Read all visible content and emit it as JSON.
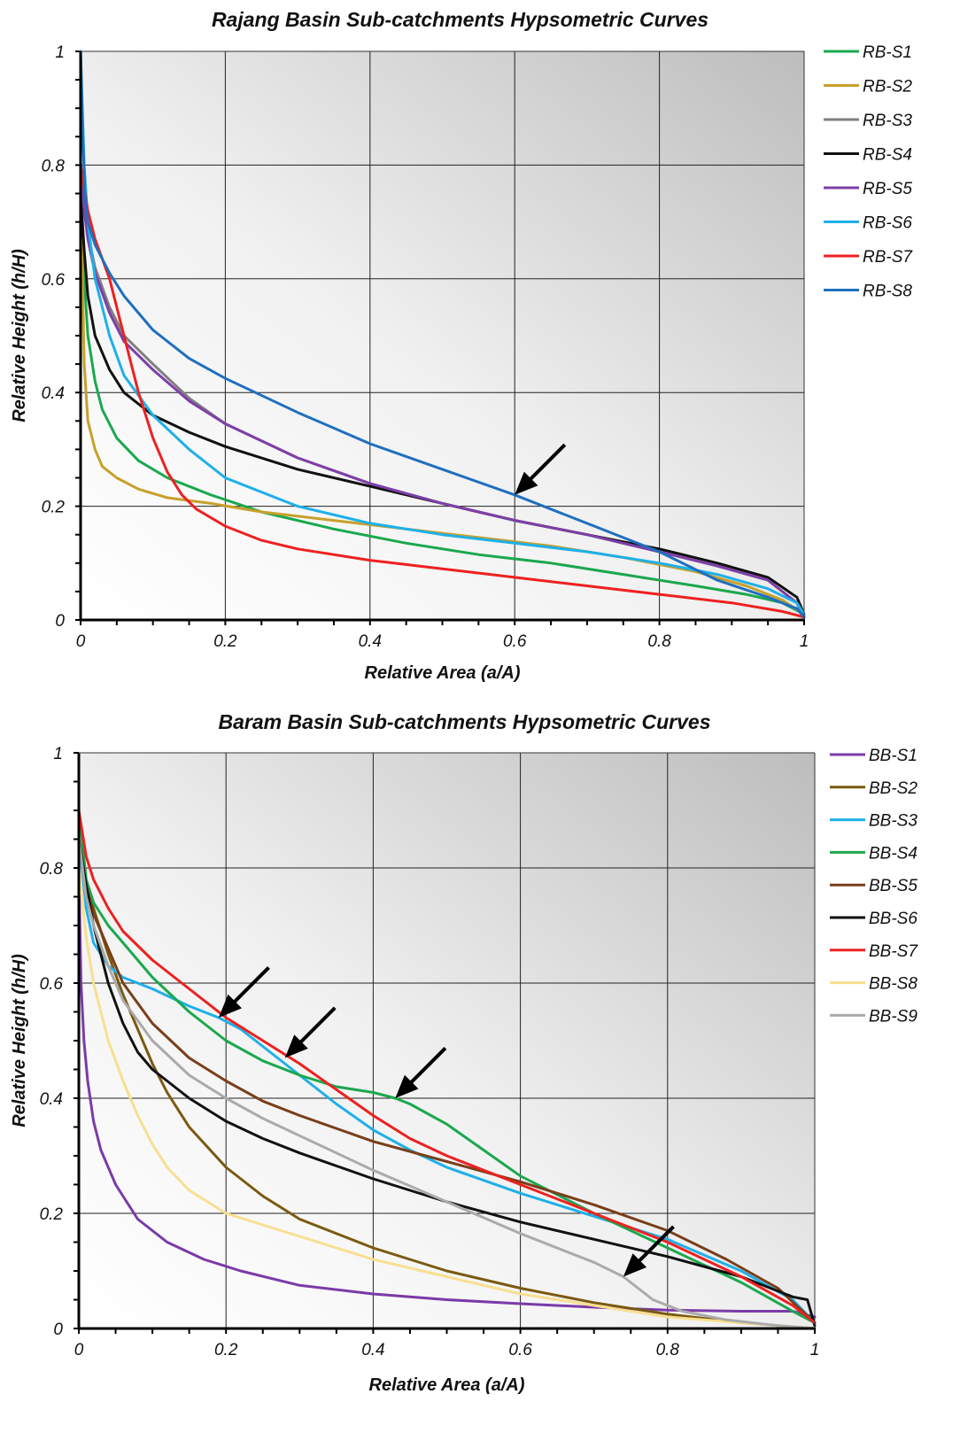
{
  "chart_data": [
    {
      "type": "line",
      "title": "Rajang Basin Sub-catchments Hypsometric Curves",
      "xlabel": "Relative Area (a/A)",
      "ylabel": "Relative Height (h/H)",
      "xlim": [
        0,
        1
      ],
      "ylim": [
        0,
        1
      ],
      "xticks": [
        "0",
        "0.2",
        "0.4",
        "0.6",
        "0.8",
        "1"
      ],
      "yticks": [
        "0",
        "0.2",
        "0.4",
        "0.6",
        "0.8",
        "1"
      ],
      "grid": true,
      "legend_position": "right",
      "annotations": [
        {
          "type": "arrow",
          "x": 0.6,
          "y": 0.22
        }
      ],
      "series": [
        {
          "name": "RB-S1",
          "color": "#1aa84e",
          "x": [
            0,
            0.005,
            0.01,
            0.02,
            0.03,
            0.05,
            0.08,
            0.12,
            0.18,
            0.25,
            0.35,
            0.45,
            0.55,
            0.65,
            0.75,
            0.85,
            0.92,
            0.97,
            1.0
          ],
          "y": [
            0.8,
            0.6,
            0.5,
            0.42,
            0.37,
            0.32,
            0.28,
            0.25,
            0.22,
            0.19,
            0.16,
            0.135,
            0.115,
            0.1,
            0.08,
            0.06,
            0.045,
            0.03,
            0.01
          ]
        },
        {
          "name": "RB-S2",
          "color": "#c8a02a",
          "x": [
            0,
            0.005,
            0.01,
            0.02,
            0.03,
            0.05,
            0.08,
            0.12,
            0.18,
            0.25,
            0.35,
            0.45,
            0.55,
            0.65,
            0.75,
            0.85,
            0.92,
            0.97,
            1.0
          ],
          "y": [
            0.75,
            0.45,
            0.35,
            0.3,
            0.27,
            0.25,
            0.23,
            0.215,
            0.205,
            0.19,
            0.175,
            0.16,
            0.145,
            0.13,
            0.11,
            0.085,
            0.06,
            0.035,
            0.01
          ]
        },
        {
          "name": "RB-S3",
          "color": "#808080",
          "x": [
            0,
            0.005,
            0.01,
            0.02,
            0.04,
            0.06,
            0.1,
            0.15,
            0.2,
            0.3,
            0.4,
            0.5,
            0.6,
            0.7,
            0.8,
            0.88,
            0.95,
            0.99,
            1.0
          ],
          "y": [
            0.8,
            0.73,
            0.68,
            0.62,
            0.55,
            0.5,
            0.45,
            0.39,
            0.345,
            0.285,
            0.24,
            0.205,
            0.175,
            0.15,
            0.12,
            0.095,
            0.07,
            0.03,
            0.005
          ]
        },
        {
          "name": "RB-S4",
          "color": "#111111",
          "x": [
            0,
            0.005,
            0.01,
            0.02,
            0.04,
            0.06,
            0.1,
            0.15,
            0.2,
            0.3,
            0.4,
            0.5,
            0.6,
            0.7,
            0.8,
            0.88,
            0.95,
            0.99,
            1.0
          ],
          "y": [
            0.75,
            0.65,
            0.57,
            0.5,
            0.44,
            0.4,
            0.36,
            0.33,
            0.305,
            0.265,
            0.235,
            0.205,
            0.175,
            0.15,
            0.125,
            0.1,
            0.075,
            0.04,
            0.01
          ]
        },
        {
          "name": "RB-S5",
          "color": "#7e3fa8",
          "x": [
            0,
            0.005,
            0.01,
            0.02,
            0.04,
            0.06,
            0.1,
            0.15,
            0.2,
            0.3,
            0.4,
            0.5,
            0.6,
            0.7,
            0.8,
            0.88,
            0.95,
            0.99,
            1.0
          ],
          "y": [
            0.8,
            0.72,
            0.67,
            0.61,
            0.54,
            0.49,
            0.44,
            0.385,
            0.345,
            0.285,
            0.24,
            0.205,
            0.175,
            0.15,
            0.12,
            0.095,
            0.07,
            0.03,
            0.005
          ]
        },
        {
          "name": "RB-S6",
          "color": "#1eb0e8",
          "x": [
            0,
            0.005,
            0.01,
            0.02,
            0.04,
            0.06,
            0.1,
            0.15,
            0.2,
            0.3,
            0.4,
            0.5,
            0.6,
            0.7,
            0.8,
            0.88,
            0.95,
            0.99,
            1.0
          ],
          "y": [
            1.0,
            0.8,
            0.7,
            0.6,
            0.5,
            0.43,
            0.36,
            0.3,
            0.25,
            0.2,
            0.17,
            0.15,
            0.135,
            0.12,
            0.1,
            0.08,
            0.055,
            0.03,
            0.01
          ]
        },
        {
          "name": "RB-S7",
          "color": "#ee2020",
          "x": [
            0,
            0.01,
            0.02,
            0.04,
            0.06,
            0.08,
            0.1,
            0.12,
            0.14,
            0.16,
            0.2,
            0.25,
            0.3,
            0.4,
            0.5,
            0.6,
            0.7,
            0.8,
            0.9,
            0.97,
            1.0
          ],
          "y": [
            0.8,
            0.72,
            0.67,
            0.6,
            0.5,
            0.4,
            0.32,
            0.26,
            0.22,
            0.195,
            0.165,
            0.14,
            0.125,
            0.105,
            0.09,
            0.075,
            0.06,
            0.045,
            0.03,
            0.015,
            0.005
          ]
        },
        {
          "name": "RB-S8",
          "color": "#1f6fbf",
          "x": [
            0,
            0.003,
            0.006,
            0.01,
            0.02,
            0.04,
            0.06,
            0.1,
            0.15,
            0.2,
            0.3,
            0.4,
            0.5,
            0.6,
            0.7,
            0.8,
            0.88,
            0.95,
            0.99,
            1.0
          ],
          "y": [
            1.0,
            0.85,
            0.75,
            0.7,
            0.66,
            0.61,
            0.57,
            0.51,
            0.46,
            0.425,
            0.365,
            0.31,
            0.265,
            0.22,
            0.17,
            0.12,
            0.07,
            0.04,
            0.02,
            0.005
          ]
        }
      ]
    },
    {
      "type": "line",
      "title": "Baram Basin Sub-catchments Hypsometric Curves",
      "xlabel": "Relative Area (a/A)",
      "ylabel": "Relative Height (h/H)",
      "xlim": [
        0,
        1
      ],
      "ylim": [
        0,
        1
      ],
      "xticks": [
        "0",
        "0.2",
        "0.4",
        "0.6",
        "0.8",
        "1"
      ],
      "yticks": [
        "0",
        "0.2",
        "0.4",
        "0.6",
        "0.8",
        "1"
      ],
      "grid": true,
      "legend_position": "right",
      "annotations": [
        {
          "type": "arrow",
          "x": 0.19,
          "y": 0.54
        },
        {
          "type": "arrow",
          "x": 0.28,
          "y": 0.47
        },
        {
          "type": "arrow",
          "x": 0.43,
          "y": 0.4
        },
        {
          "type": "arrow",
          "x": 0.74,
          "y": 0.09
        }
      ],
      "series": [
        {
          "name": "BB-S1",
          "color": "#7b3aa8",
          "x": [
            0,
            0.003,
            0.007,
            0.012,
            0.02,
            0.03,
            0.05,
            0.08,
            0.12,
            0.17,
            0.22,
            0.3,
            0.4,
            0.5,
            0.6,
            0.7,
            0.8,
            0.9,
            0.97,
            1.0
          ],
          "y": [
            0.8,
            0.6,
            0.5,
            0.43,
            0.36,
            0.31,
            0.25,
            0.19,
            0.15,
            0.12,
            0.1,
            0.075,
            0.06,
            0.05,
            0.043,
            0.037,
            0.032,
            0.03,
            0.03,
            0.02
          ]
        },
        {
          "name": "BB-S2",
          "color": "#7a5a10",
          "x": [
            0,
            0.01,
            0.02,
            0.04,
            0.06,
            0.08,
            0.1,
            0.12,
            0.15,
            0.2,
            0.25,
            0.3,
            0.4,
            0.5,
            0.6,
            0.7,
            0.8,
            0.9,
            1.0
          ],
          "y": [
            0.85,
            0.78,
            0.73,
            0.65,
            0.58,
            0.52,
            0.46,
            0.41,
            0.35,
            0.28,
            0.23,
            0.19,
            0.14,
            0.1,
            0.07,
            0.045,
            0.025,
            0.01,
            0.0
          ]
        },
        {
          "name": "BB-S3",
          "color": "#1eb0e8",
          "x": [
            0,
            0.01,
            0.02,
            0.04,
            0.06,
            0.1,
            0.15,
            0.19,
            0.22,
            0.25,
            0.3,
            0.35,
            0.4,
            0.45,
            0.5,
            0.6,
            0.7,
            0.8,
            0.9,
            0.97,
            1.0
          ],
          "y": [
            0.85,
            0.73,
            0.67,
            0.63,
            0.61,
            0.59,
            0.56,
            0.54,
            0.52,
            0.49,
            0.44,
            0.39,
            0.345,
            0.31,
            0.28,
            0.235,
            0.195,
            0.155,
            0.1,
            0.05,
            0.01
          ]
        },
        {
          "name": "BB-S4",
          "color": "#1aa84e",
          "x": [
            0,
            0.01,
            0.02,
            0.04,
            0.06,
            0.1,
            0.15,
            0.2,
            0.25,
            0.3,
            0.35,
            0.4,
            0.43,
            0.45,
            0.5,
            0.55,
            0.6,
            0.7,
            0.8,
            0.9,
            0.97,
            1.0
          ],
          "y": [
            0.9,
            0.78,
            0.74,
            0.7,
            0.67,
            0.61,
            0.55,
            0.5,
            0.465,
            0.44,
            0.42,
            0.41,
            0.4,
            0.39,
            0.355,
            0.31,
            0.265,
            0.2,
            0.14,
            0.08,
            0.03,
            0.01
          ]
        },
        {
          "name": "BB-S5",
          "color": "#7a3e1a",
          "x": [
            0,
            0.01,
            0.02,
            0.04,
            0.06,
            0.1,
            0.15,
            0.2,
            0.25,
            0.3,
            0.4,
            0.5,
            0.6,
            0.7,
            0.8,
            0.88,
            0.95,
            1.0
          ],
          "y": [
            0.85,
            0.77,
            0.72,
            0.66,
            0.6,
            0.53,
            0.47,
            0.43,
            0.395,
            0.37,
            0.325,
            0.29,
            0.255,
            0.215,
            0.17,
            0.12,
            0.07,
            0.01
          ]
        },
        {
          "name": "BB-S6",
          "color": "#111111",
          "x": [
            0,
            0.01,
            0.02,
            0.04,
            0.06,
            0.08,
            0.1,
            0.15,
            0.2,
            0.25,
            0.3,
            0.4,
            0.5,
            0.6,
            0.7,
            0.8,
            0.9,
            0.97,
            0.99,
            1.0
          ],
          "y": [
            0.85,
            0.77,
            0.7,
            0.6,
            0.53,
            0.48,
            0.45,
            0.4,
            0.36,
            0.33,
            0.305,
            0.26,
            0.22,
            0.185,
            0.155,
            0.125,
            0.09,
            0.055,
            0.05,
            0.005
          ]
        },
        {
          "name": "BB-S7",
          "color": "#ee2020",
          "x": [
            0,
            0.01,
            0.02,
            0.04,
            0.06,
            0.1,
            0.15,
            0.2,
            0.25,
            0.3,
            0.35,
            0.4,
            0.45,
            0.5,
            0.6,
            0.7,
            0.8,
            0.9,
            0.97,
            1.0
          ],
          "y": [
            0.9,
            0.82,
            0.78,
            0.73,
            0.69,
            0.64,
            0.59,
            0.54,
            0.5,
            0.46,
            0.415,
            0.37,
            0.33,
            0.3,
            0.25,
            0.2,
            0.15,
            0.09,
            0.04,
            0.01
          ]
        },
        {
          "name": "BB-S8",
          "color": "#f8df90",
          "x": [
            0,
            0.01,
            0.02,
            0.04,
            0.06,
            0.08,
            0.1,
            0.12,
            0.15,
            0.2,
            0.25,
            0.3,
            0.4,
            0.5,
            0.6,
            0.7,
            0.8,
            0.9,
            1.0
          ],
          "y": [
            0.8,
            0.68,
            0.6,
            0.5,
            0.43,
            0.37,
            0.32,
            0.28,
            0.24,
            0.2,
            0.18,
            0.16,
            0.12,
            0.09,
            0.06,
            0.04,
            0.02,
            0.01,
            0.0
          ]
        },
        {
          "name": "BB-S9",
          "color": "#aaaaaa",
          "x": [
            0,
            0.01,
            0.02,
            0.04,
            0.06,
            0.1,
            0.15,
            0.2,
            0.25,
            0.3,
            0.35,
            0.4,
            0.5,
            0.6,
            0.7,
            0.74,
            0.78,
            0.82,
            0.88,
            0.95,
            1.0
          ],
          "y": [
            0.85,
            0.75,
            0.7,
            0.63,
            0.57,
            0.5,
            0.44,
            0.4,
            0.365,
            0.335,
            0.305,
            0.275,
            0.22,
            0.165,
            0.115,
            0.09,
            0.05,
            0.03,
            0.015,
            0.005,
            0.0
          ]
        }
      ]
    }
  ]
}
